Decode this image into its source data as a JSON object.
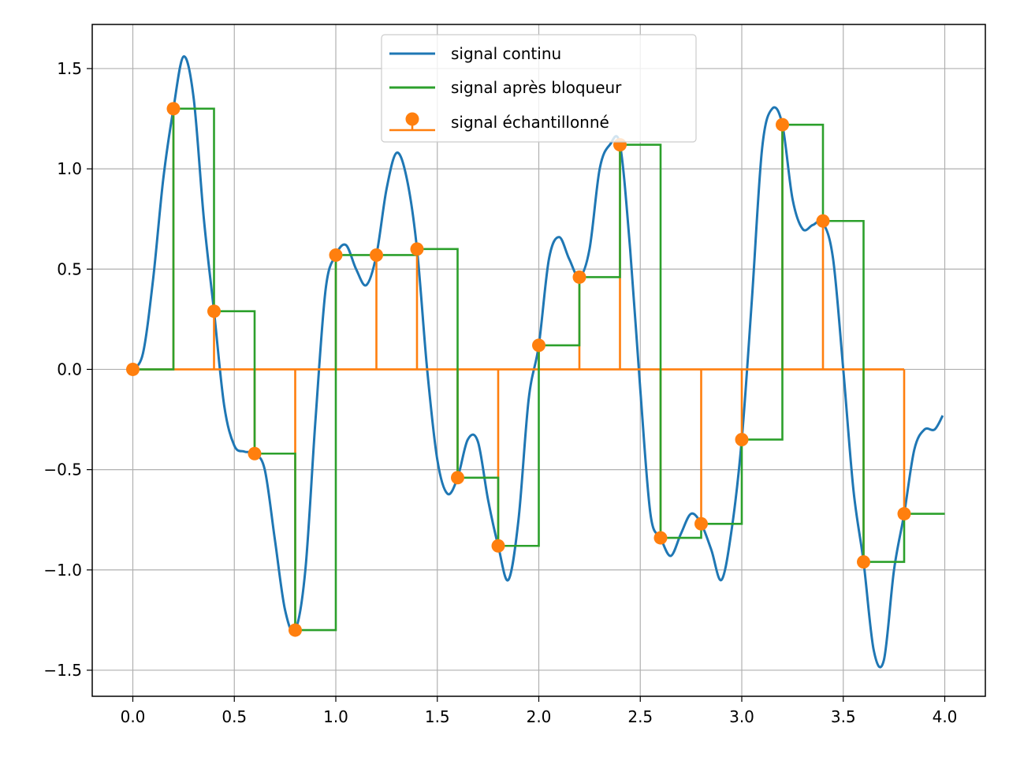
{
  "chart_data": {
    "type": "line",
    "title": "",
    "xlabel": "",
    "ylabel": "",
    "xlim": [
      -0.2,
      4.2
    ],
    "ylim": [
      -1.63,
      1.72
    ],
    "grid": true,
    "legend_position": "top-center",
    "x_ticks": [
      0.0,
      0.5,
      1.0,
      1.5,
      2.0,
      2.5,
      3.0,
      3.5,
      4.0
    ],
    "x_tick_labels": [
      "0.0",
      "0.5",
      "1.0",
      "1.5",
      "2.0",
      "2.5",
      "3.0",
      "3.5",
      "4.0"
    ],
    "y_ticks": [
      1.5,
      1.0,
      0.5,
      0.0,
      -0.5,
      -1.0,
      -1.5
    ],
    "y_tick_labels": [
      "1.5",
      "1.0",
      "0.5",
      "0.0",
      "−0.5",
      "−1.0",
      "−1.5"
    ],
    "colors": {
      "continuous": "#1f77b4",
      "held": "#2ca02c",
      "sampled": "#ff7f0e",
      "grid": "#b0b0b0"
    },
    "series": [
      {
        "name": "signal continu",
        "kind": "line",
        "x": [
          0.0,
          0.05,
          0.1,
          0.15,
          0.2,
          0.25,
          0.3,
          0.35,
          0.4,
          0.45,
          0.5,
          0.55,
          0.6,
          0.65,
          0.7,
          0.75,
          0.8,
          0.85,
          0.9,
          0.95,
          1.0,
          1.05,
          1.1,
          1.15,
          1.2,
          1.25,
          1.3,
          1.35,
          1.4,
          1.45,
          1.5,
          1.55,
          1.6,
          1.65,
          1.7,
          1.75,
          1.8,
          1.85,
          1.9,
          1.95,
          2.0,
          2.05,
          2.1,
          2.15,
          2.2,
          2.25,
          2.3,
          2.35,
          2.4,
          2.45,
          2.5,
          2.55,
          2.6,
          2.65,
          2.7,
          2.75,
          2.8,
          2.85,
          2.9,
          2.95,
          3.0,
          3.05,
          3.1,
          3.15,
          3.2,
          3.25,
          3.3,
          3.35,
          3.4,
          3.45,
          3.5,
          3.55,
          3.6,
          3.65,
          3.7,
          3.75,
          3.8,
          3.85,
          3.9,
          3.95,
          3.99
        ],
        "values": [
          0.0,
          0.08,
          0.45,
          0.95,
          1.3,
          1.56,
          1.35,
          0.75,
          0.29,
          -0.18,
          -0.38,
          -0.41,
          -0.42,
          -0.5,
          -0.85,
          -1.2,
          -1.3,
          -1.0,
          -0.25,
          0.4,
          0.57,
          0.62,
          0.5,
          0.42,
          0.57,
          0.9,
          1.08,
          0.95,
          0.6,
          0.0,
          -0.45,
          -0.62,
          -0.54,
          -0.35,
          -0.36,
          -0.65,
          -0.88,
          -1.05,
          -0.75,
          -0.15,
          0.12,
          0.55,
          0.66,
          0.55,
          0.46,
          0.6,
          1.0,
          1.12,
          1.12,
          0.6,
          -0.1,
          -0.72,
          -0.84,
          -0.93,
          -0.82,
          -0.72,
          -0.77,
          -0.9,
          -1.05,
          -0.8,
          -0.35,
          0.35,
          1.1,
          1.3,
          1.22,
          0.85,
          0.7,
          0.72,
          0.73,
          0.55,
          0.0,
          -0.6,
          -0.96,
          -1.4,
          -1.45,
          -1.0,
          -0.72,
          -0.4,
          -0.3,
          -0.3,
          -0.23
        ]
      },
      {
        "name": "signal après bloqueur",
        "kind": "step",
        "x": [
          0.0,
          0.2,
          0.4,
          0.6,
          0.8,
          1.0,
          1.2,
          1.4,
          1.6,
          1.8,
          2.0,
          2.2,
          2.4,
          2.6,
          2.8,
          3.0,
          3.2,
          3.4,
          3.6,
          3.8
        ],
        "values": [
          0.0,
          1.3,
          0.29,
          -0.42,
          -1.3,
          0.57,
          0.57,
          0.6,
          -0.54,
          -0.88,
          0.12,
          0.46,
          1.12,
          -0.84,
          -0.77,
          -0.35,
          1.22,
          0.74,
          -0.96,
          -0.72
        ]
      },
      {
        "name": "signal échantillonné",
        "kind": "stem",
        "x": [
          0.0,
          0.2,
          0.4,
          0.6,
          0.8,
          1.0,
          1.2,
          1.4,
          1.6,
          1.8,
          2.0,
          2.2,
          2.4,
          2.6,
          2.8,
          3.0,
          3.2,
          3.4,
          3.6,
          3.8
        ],
        "values": [
          0.0,
          1.3,
          0.29,
          -0.42,
          -1.3,
          0.57,
          0.57,
          0.6,
          -0.54,
          -0.88,
          0.12,
          0.46,
          1.12,
          -0.84,
          -0.77,
          -0.35,
          1.22,
          0.74,
          -0.96,
          -0.72
        ]
      }
    ]
  }
}
